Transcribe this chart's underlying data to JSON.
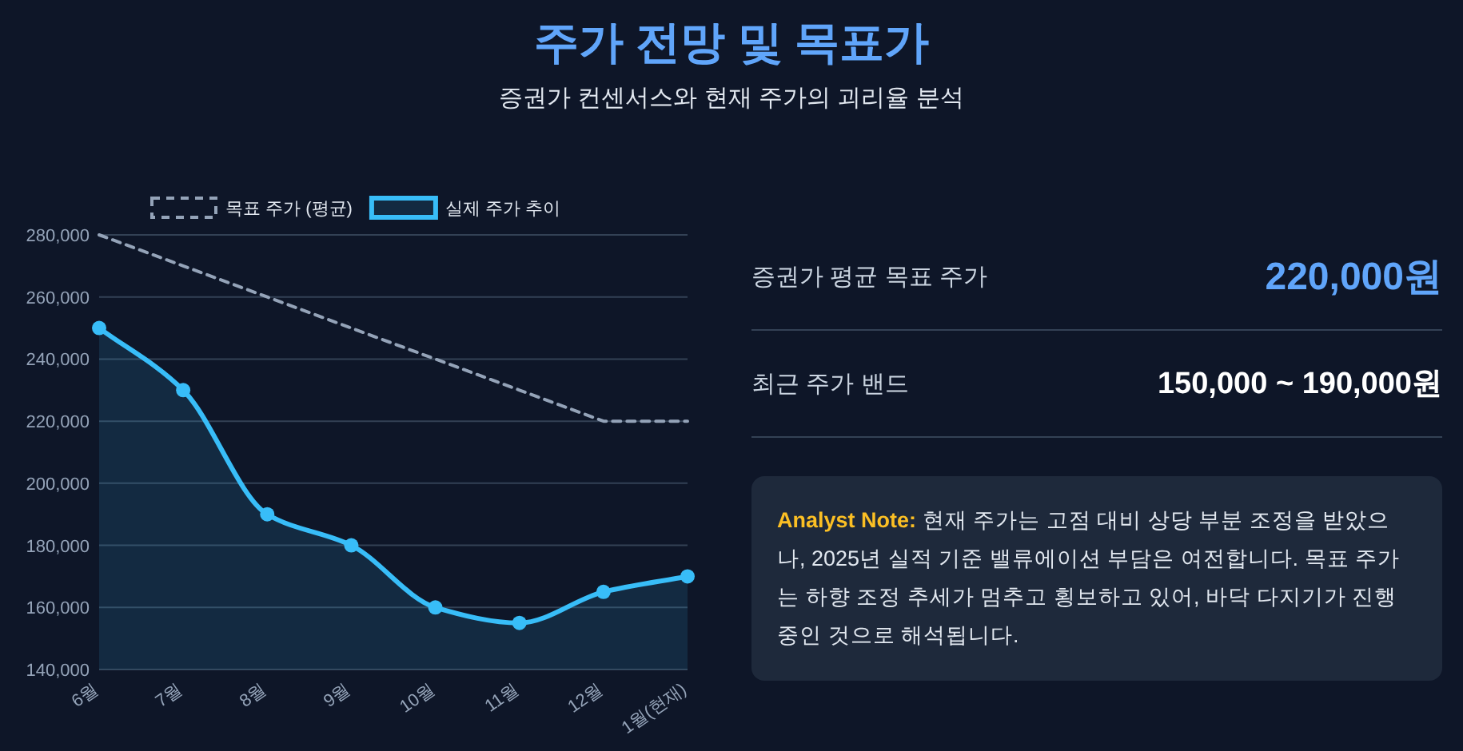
{
  "chart_data": [
    {
      "type": "line",
      "title": "주가 전망 및 목표가",
      "subtitle": "증권가 컨센서스와 현재 주가의 괴리율 분석",
      "categories": [
        "6월",
        "7월",
        "8월",
        "9월",
        "10월",
        "11월",
        "12월",
        "1월(현재)"
      ],
      "series": [
        {
          "name": "목표 주가 (평균)",
          "type": "line",
          "color": "#94a3b8",
          "line_style": "dashed",
          "marker": "none",
          "values": [
            280000,
            270000,
            260000,
            250000,
            240000,
            230000,
            220000,
            220000
          ]
        },
        {
          "name": "실제 주가 추이",
          "type": "area",
          "color": "#38bdf8",
          "line_style": "solid",
          "marker": "circle",
          "values": [
            250000,
            230000,
            190000,
            180000,
            160000,
            155000,
            165000,
            170000
          ]
        }
      ],
      "ylim": [
        140000,
        280000
      ],
      "yticks": [
        {
          "value": 140000,
          "label": "140,000"
        },
        {
          "value": 160000,
          "label": "160,000"
        },
        {
          "value": 180000,
          "label": "180,000"
        },
        {
          "value": 200000,
          "label": "200,000"
        },
        {
          "value": 220000,
          "label": "220,000"
        },
        {
          "value": 240000,
          "label": "240,000"
        },
        {
          "value": 260000,
          "label": "260,000"
        },
        {
          "value": 280000,
          "label": "280,000"
        }
      ],
      "grid": "y",
      "legend": "top"
    },
    {
      "type": "other",
      "annotations": [
        "증권가 평균 목표 주가",
        "220,000원",
        "최근 주가 밴드",
        "150,000 ~ 190,000원",
        "Analyst Note:",
        "현재 주가는 고점 대비 상당 부분 조정을 받았으나, 2025년 실적 기준 밸류에이션 부담은 여전합니다. 목표 주가는 하향 조정 추세가 멈추고 횡보하고 있어, 바닥 다지기가 진행 중인 것으로 해석됩니다."
      ]
    }
  ]
}
